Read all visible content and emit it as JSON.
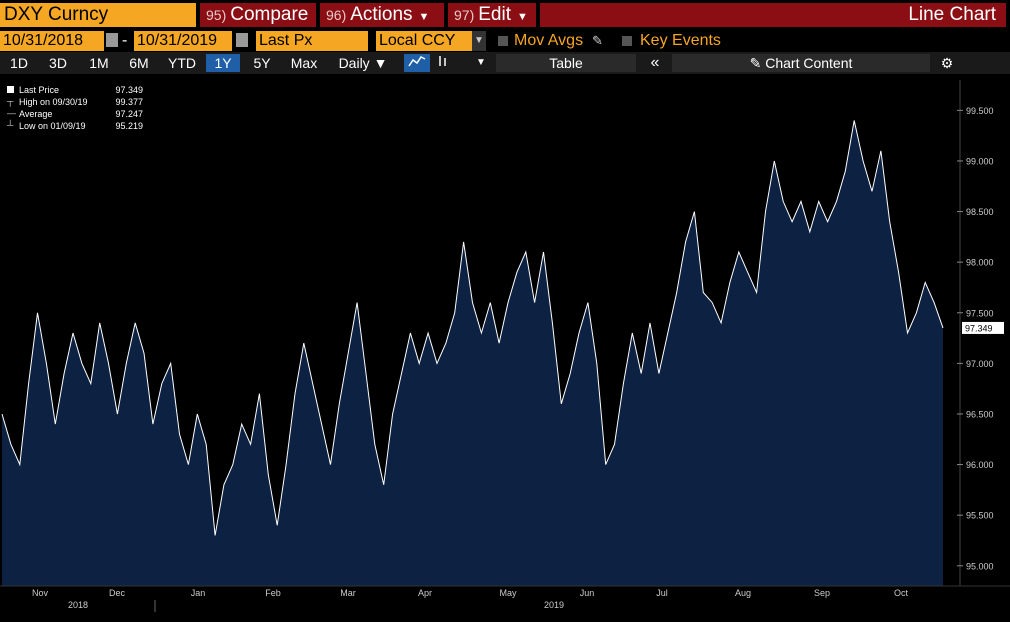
{
  "toolbar": {
    "ticker": "DXY Curncy",
    "compare_num": "95)",
    "compare_label": "Compare",
    "actions_num": "96)",
    "actions_label": "Actions",
    "edit_num": "97)",
    "edit_label": "Edit",
    "chart_type": "Line Chart"
  },
  "params": {
    "start_date": "10/31/2018",
    "end_date": "10/31/2019",
    "field": "Last Px",
    "currency": "Local CCY",
    "mov_avgs": "Mov Avgs",
    "key_events": "Key Events"
  },
  "periods": [
    "1D",
    "3D",
    "1M",
    "6M",
    "YTD",
    "1Y",
    "5Y",
    "Max"
  ],
  "selected_period": "1Y",
  "frequency": "Daily",
  "table_label": "Table",
  "chart_content_label": "Chart Content",
  "colors": {
    "ticker_bg": "#f5a623",
    "button_bg": "#8b0e14",
    "area_fill": "#0d2242",
    "line": "#ffffff",
    "selected": "#1f5fa8"
  },
  "legend": [
    {
      "label": "Last Price",
      "value": "97.349"
    },
    {
      "label": "High on 09/30/19",
      "value": "99.377"
    },
    {
      "label": "Average",
      "value": "97.247"
    },
    {
      "label": "Low on 01/09/19",
      "value": "95.219"
    }
  ],
  "chart_data": {
    "type": "area",
    "ylim": [
      94.8,
      99.8
    ],
    "yticks": [
      "95.000",
      "95.500",
      "96.000",
      "96.500",
      "97.000",
      "97.500",
      "98.000",
      "98.500",
      "99.000",
      "99.500"
    ],
    "last_price_label": "97.349",
    "months": [
      "Nov",
      "Dec",
      "Jan",
      "Feb",
      "Mar",
      "Apr",
      "May",
      "Jun",
      "Jul",
      "Aug",
      "Sep",
      "Oct"
    ],
    "years": [
      "2018",
      "2019"
    ],
    "series": [
      {
        "values": [
          96.5,
          96.2,
          96.0,
          96.8,
          97.5,
          97.0,
          96.4,
          96.9,
          97.3,
          97.0,
          96.8,
          97.4,
          97.0,
          96.5,
          97.0,
          97.4,
          97.1,
          96.4,
          96.8,
          97.0,
          96.3,
          96.0,
          96.5,
          96.2,
          95.3,
          95.8,
          96.0,
          96.4,
          96.2,
          96.7,
          95.9,
          95.4,
          96.0,
          96.7,
          97.2,
          96.8,
          96.4,
          96.0,
          96.6,
          97.1,
          97.6,
          96.9,
          96.2,
          95.8,
          96.5,
          96.9,
          97.3,
          97.0,
          97.3,
          97.0,
          97.2,
          97.5,
          98.2,
          97.6,
          97.3,
          97.6,
          97.2,
          97.6,
          97.9,
          98.1,
          97.6,
          98.1,
          97.4,
          96.6,
          96.9,
          97.3,
          97.6,
          97.0,
          96.0,
          96.2,
          96.8,
          97.3,
          96.9,
          97.4,
          96.9,
          97.3,
          97.7,
          98.2,
          98.5,
          97.7,
          97.6,
          97.4,
          97.8,
          98.1,
          97.9,
          97.7,
          98.5,
          99.0,
          98.6,
          98.4,
          98.6,
          98.3,
          98.6,
          98.4,
          98.6,
          98.9,
          99.4,
          99.0,
          98.7,
          99.1,
          98.4,
          97.9,
          97.3,
          97.5,
          97.8,
          97.6,
          97.35
        ]
      }
    ]
  }
}
